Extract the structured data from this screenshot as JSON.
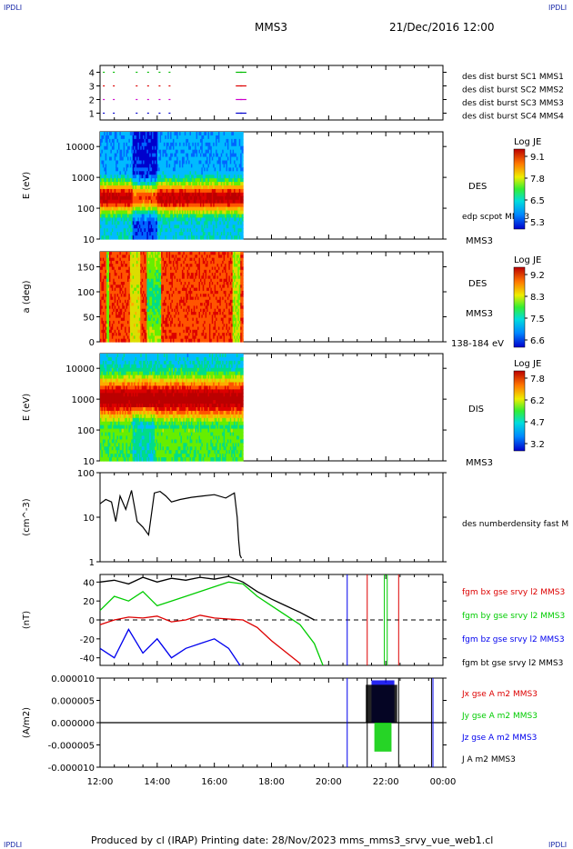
{
  "header": {
    "corner_left_top": "IPDLI",
    "corner_right_top": "IPDLI",
    "corner_left_bottom": "IPDLI",
    "corner_right_bottom": "IPDLI",
    "mission": "MMS3",
    "datetime": "21/Dec/2016 12:00"
  },
  "footer": {
    "text": "Produced by cl (IRAP)   Printing date: 28/Nov/2023   mms_mms3_srvy_vue_web1.cl"
  },
  "colors": {
    "mms1": "#0000cc",
    "mms2": "#cc00cc",
    "mms3": "#dd0000",
    "mms4": "#00bb00",
    "bx": "#dd0000",
    "by": "#00cc00",
    "bz": "#0000ee",
    "bt": "#000000"
  },
  "chart_data": [
    {
      "type": "scatter",
      "panel": "burst",
      "ylim": [
        0.5,
        4.5
      ],
      "yticks": [
        "1",
        "2",
        "3",
        "4"
      ],
      "legend": [
        {
          "text": "des dist burst SC1 MMS1",
          "color": "#0000cc"
        },
        {
          "text": "des dist burst SC2 MMS2",
          "color": "#cc00cc"
        },
        {
          "text": "des dist burst SC3 MMS3",
          "color": "#dd0000"
        },
        {
          "text": "des dist burst SC4 MMS4",
          "color": "#00bb00"
        }
      ],
      "burst_hours": [
        12.1,
        12.45,
        13.25,
        13.65,
        14.05,
        14.4,
        16.75,
        16.9
      ]
    },
    {
      "type": "heatmap",
      "panel": "des-energy",
      "ylabel": "E (eV)",
      "yscale": "log",
      "ylim": [
        10,
        30000
      ],
      "yticks": [
        "10",
        "100",
        "1000",
        "10000"
      ],
      "labels": [
        "DES",
        "edp scpot MMS3",
        "MMS3"
      ],
      "colorbar": {
        "title": "Log JE",
        "ticks": [
          "9.1",
          "7.8",
          "6.5",
          "5.3"
        ]
      },
      "data_range_hours": [
        12.0,
        17.0
      ]
    },
    {
      "type": "heatmap",
      "panel": "des-pitch",
      "ylabel": "a (deg)",
      "ylim": [
        0,
        180
      ],
      "yticks": [
        "0",
        "50",
        "100",
        "150"
      ],
      "labels": [
        "DES",
        "MMS3",
        "138-184 eV"
      ],
      "colorbar": {
        "title": "Log JE",
        "ticks": [
          "9.2",
          "8.3",
          "7.5",
          "6.6"
        ]
      },
      "data_range_hours": [
        12.0,
        17.0
      ]
    },
    {
      "type": "heatmap",
      "panel": "dis-energy",
      "ylabel": "E (eV)",
      "yscale": "log",
      "ylim": [
        10,
        30000
      ],
      "yticks": [
        "10",
        "100",
        "1000",
        "10000"
      ],
      "labels": [
        "DIS",
        "MMS3"
      ],
      "colorbar": {
        "title": "Log JE",
        "ticks": [
          "7.8",
          "6.2",
          "4.7",
          "3.2"
        ]
      },
      "data_range_hours": [
        12.0,
        17.0
      ]
    },
    {
      "type": "line",
      "panel": "density",
      "ylabel": "(cm^-3)",
      "yscale": "log",
      "ylim": [
        1,
        100
      ],
      "yticks": [
        "1",
        "10",
        "100"
      ],
      "series": [
        {
          "name": "des numberdensity fast M",
          "color": "#000000",
          "x": [
            12.0,
            12.2,
            12.4,
            12.55,
            12.7,
            12.9,
            13.1,
            13.3,
            13.5,
            13.7,
            13.9,
            14.1,
            14.3,
            14.5,
            14.8,
            15.2,
            15.6,
            16.0,
            16.4,
            16.7,
            16.8,
            16.85,
            16.9,
            16.95
          ],
          "y": [
            20,
            25,
            22,
            8,
            30,
            15,
            40,
            8,
            6,
            4,
            35,
            38,
            30,
            22,
            25,
            28,
            30,
            32,
            27,
            35,
            10,
            3,
            1.4,
            1.2
          ]
        }
      ]
    },
    {
      "type": "line",
      "panel": "magnetic-field",
      "ylabel": "(nT)",
      "ylim": [
        -48,
        48
      ],
      "yticks": [
        "-40",
        "-20",
        "0",
        "20",
        "40"
      ],
      "series": [
        {
          "name": "fgm bx gse srvy l2 MMS3",
          "color": "#dd0000",
          "x": [
            12.0,
            12.5,
            13.0,
            13.5,
            14.0,
            14.5,
            15.0,
            15.5,
            16.0,
            16.5,
            17.0,
            17.5,
            18.0,
            18.5,
            19.0
          ],
          "y": [
            -5,
            0,
            3,
            2,
            4,
            -2,
            0,
            5,
            2,
            1,
            0,
            -8,
            -22,
            -34,
            -46
          ]
        },
        {
          "name": "fgm by gse srvy l2 MMS3",
          "color": "#00cc00",
          "x": [
            12.0,
            12.5,
            13.0,
            13.5,
            14.0,
            14.5,
            15.0,
            15.5,
            16.0,
            16.5,
            17.0,
            17.5,
            18.0,
            18.5,
            19.0,
            19.5,
            19.8
          ],
          "y": [
            10,
            25,
            20,
            30,
            15,
            20,
            25,
            30,
            35,
            40,
            38,
            25,
            15,
            5,
            -5,
            -25,
            -48
          ]
        },
        {
          "name": "fgm bz gse srvy l2 MMS3",
          "color": "#0000ee",
          "x": [
            12.0,
            12.5,
            13.0,
            13.5,
            14.0,
            14.5,
            15.0,
            15.5,
            16.0,
            16.5,
            16.9
          ],
          "y": [
            -30,
            -40,
            -10,
            -35,
            -20,
            -40,
            -30,
            -25,
            -20,
            -30,
            -48
          ]
        },
        {
          "name": "fgm bt gse srvy l2 MMS3",
          "color": "#000000",
          "x": [
            12.0,
            12.5,
            13.0,
            13.5,
            14.0,
            14.5,
            15.0,
            15.5,
            16.0,
            16.5,
            17.0,
            17.5,
            18.0,
            18.5,
            19.0,
            19.5
          ],
          "y": [
            40,
            42,
            38,
            45,
            40,
            44,
            42,
            45,
            43,
            46,
            40,
            30,
            22,
            15,
            8,
            0
          ]
        }
      ],
      "vertical_lines": [
        {
          "x": 20.65,
          "color": "#0000ee"
        },
        {
          "x": 21.35,
          "color": "#dd0000"
        },
        {
          "x": 21.95,
          "color": "#00cc00"
        },
        {
          "x": 22.05,
          "color": "#00cc00"
        },
        {
          "x": 22.45,
          "color": "#dd0000"
        }
      ]
    },
    {
      "type": "line",
      "panel": "current-density",
      "ylabel": "(A/m2)",
      "ylim": [
        -1e-05,
        1e-05
      ],
      "yticks": [
        "-0.000010",
        "-0.000005",
        "0.000000",
        "0.000005",
        "0.000010"
      ],
      "xticks": [
        "12:00",
        "14:00",
        "16:00",
        "18:00",
        "20:00",
        "22:00",
        "00:00"
      ],
      "xlim": [
        12,
        24
      ],
      "series": [
        {
          "name": "Jx gse A m2 MMS3",
          "color": "#dd0000"
        },
        {
          "name": "Jy gse A m2 MMS3",
          "color": "#00cc00"
        },
        {
          "name": "Jz gse A m2 MMS3",
          "color": "#0000ee"
        },
        {
          "name": "J A m2 MMS3",
          "color": "#000000"
        }
      ]
    }
  ]
}
